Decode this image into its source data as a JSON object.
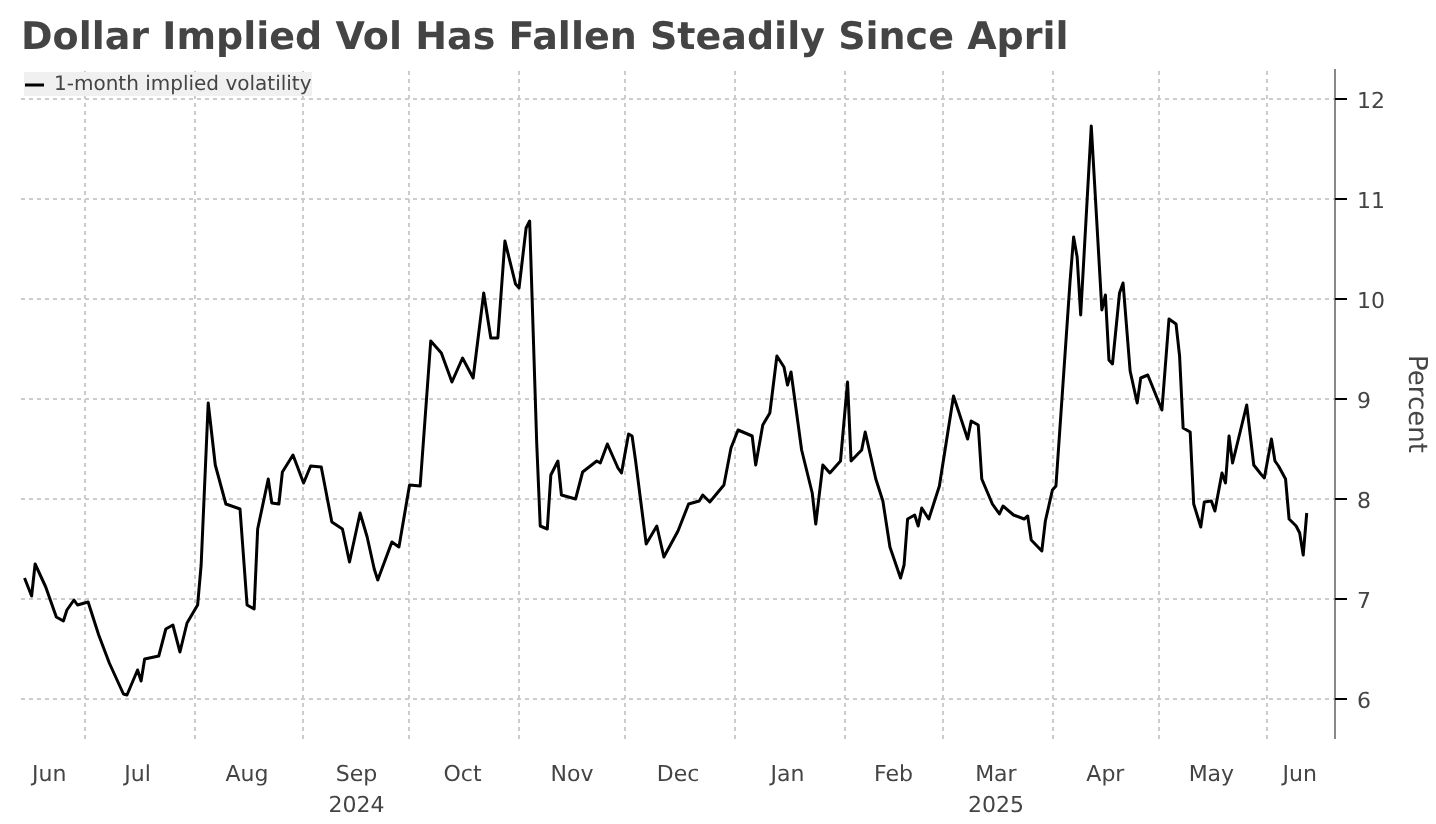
{
  "chart_data": {
    "type": "line",
    "title": "Dollar Implied Vol Has Fallen Steadily Since April",
    "ylabel": "Percent",
    "x": [
      "2024-06-14",
      "2024-06-16",
      "2024-06-17",
      "2024-06-20",
      "2024-06-23",
      "2024-06-25",
      "2024-06-26",
      "2024-06-28",
      "2024-06-29",
      "2024-07-02",
      "2024-07-05",
      "2024-07-08",
      "2024-07-12",
      "2024-07-13",
      "2024-07-16",
      "2024-07-17",
      "2024-07-18",
      "2024-07-22",
      "2024-07-24",
      "2024-07-26",
      "2024-07-28",
      "2024-07-30",
      "2024-08-02",
      "2024-08-03",
      "2024-08-05",
      "2024-08-07",
      "2024-08-10",
      "2024-08-14",
      "2024-08-16",
      "2024-08-18",
      "2024-08-19",
      "2024-08-22",
      "2024-08-23",
      "2024-08-25",
      "2024-08-26",
      "2024-08-29",
      "2024-09-01",
      "2024-09-03",
      "2024-09-06",
      "2024-09-09",
      "2024-09-12",
      "2024-09-14",
      "2024-09-17",
      "2024-09-19",
      "2024-09-21",
      "2024-09-22",
      "2024-09-26",
      "2024-09-28",
      "2024-10-01",
      "2024-10-04",
      "2024-10-07",
      "2024-10-10",
      "2024-10-13",
      "2024-10-16",
      "2024-10-19",
      "2024-10-22",
      "2024-10-24",
      "2024-10-26",
      "2024-10-28",
      "2024-10-31",
      "2024-11-01",
      "2024-11-03",
      "2024-11-04",
      "2024-11-06",
      "2024-11-07",
      "2024-11-09",
      "2024-11-10",
      "2024-11-12",
      "2024-11-13",
      "2024-11-17",
      "2024-11-19",
      "2024-11-23",
      "2024-11-24",
      "2024-11-26",
      "2024-11-29",
      "2024-11-30",
      "2024-12-02",
      "2024-12-03",
      "2024-12-04",
      "2024-12-07",
      "2024-12-10",
      "2024-12-12",
      "2024-12-16",
      "2024-12-19",
      "2024-12-22",
      "2024-12-23",
      "2024-12-25",
      "2024-12-29",
      "2024-12-31",
      "2025-01-02",
      "2025-01-06",
      "2025-01-07",
      "2025-01-09",
      "2025-01-11",
      "2025-01-13",
      "2025-01-15",
      "2025-01-16",
      "2025-01-17",
      "2025-01-20",
      "2025-01-23",
      "2025-01-24",
      "2025-01-26",
      "2025-01-28",
      "2025-01-31",
      "2025-02-02",
      "2025-02-03",
      "2025-02-06",
      "2025-02-07",
      "2025-02-10",
      "2025-02-12",
      "2025-02-14",
      "2025-02-17",
      "2025-02-18",
      "2025-02-19",
      "2025-02-21",
      "2025-02-22",
      "2025-02-23",
      "2025-02-25",
      "2025-02-28",
      "2025-03-04",
      "2025-03-08",
      "2025-03-09",
      "2025-03-11",
      "2025-03-12",
      "2025-03-15",
      "2025-03-17",
      "2025-03-18",
      "2025-03-21",
      "2025-03-24",
      "2025-03-25",
      "2025-03-26",
      "2025-03-29",
      "2025-03-30",
      "2025-04-01",
      "2025-04-02",
      "2025-04-06",
      "2025-04-07",
      "2025-04-08",
      "2025-04-09",
      "2025-04-12",
      "2025-04-15",
      "2025-04-16",
      "2025-04-17",
      "2025-04-18",
      "2025-04-20",
      "2025-04-21",
      "2025-04-23",
      "2025-04-25",
      "2025-04-26",
      "2025-04-28",
      "2025-05-02",
      "2025-05-04",
      "2025-05-06",
      "2025-05-07",
      "2025-05-08",
      "2025-05-10",
      "2025-05-11",
      "2025-05-13",
      "2025-05-14",
      "2025-05-16",
      "2025-05-17",
      "2025-05-19",
      "2025-05-20",
      "2025-05-21",
      "2025-05-22",
      "2025-05-26",
      "2025-05-28",
      "2025-05-30",
      "2025-05-31",
      "2025-06-02",
      "2025-06-03",
      "2025-06-04",
      "2025-06-06",
      "2025-06-07",
      "2025-06-09",
      "2025-06-10",
      "2025-06-11",
      "2025-06-12"
    ],
    "series": [
      {
        "name": "1-month implied volatility",
        "color": "#000000",
        "values": [
          7.21,
          7.03,
          7.35,
          7.12,
          6.82,
          6.78,
          6.89,
          6.99,
          6.94,
          6.97,
          6.64,
          6.36,
          6.05,
          6.04,
          6.29,
          6.18,
          6.4,
          6.43,
          6.7,
          6.74,
          6.47,
          6.76,
          6.94,
          7.34,
          8.96,
          8.34,
          7.95,
          7.9,
          6.94,
          6.9,
          7.7,
          8.2,
          7.96,
          7.95,
          8.27,
          8.44,
          8.16,
          8.33,
          8.32,
          7.77,
          7.7,
          7.37,
          7.86,
          7.62,
          7.3,
          7.19,
          7.57,
          7.52,
          8.14,
          8.13,
          9.58,
          9.46,
          9.17,
          9.41,
          9.21,
          10.06,
          9.61,
          9.61,
          10.58,
          10.15,
          10.11,
          10.71,
          10.78,
          8.56,
          7.73,
          7.7,
          8.24,
          8.38,
          8.04,
          8.0,
          8.27,
          8.38,
          8.36,
          8.55,
          8.31,
          8.26,
          8.65,
          8.63,
          8.38,
          7.55,
          7.73,
          7.42,
          7.68,
          7.95,
          7.98,
          8.04,
          7.97,
          8.14,
          8.51,
          8.69,
          8.63,
          8.34,
          8.74,
          8.86,
          9.43,
          9.32,
          9.14,
          9.27,
          8.49,
          8.06,
          7.75,
          8.34,
          8.26,
          8.38,
          9.17,
          8.38,
          8.49,
          8.67,
          8.2,
          7.98,
          7.52,
          7.21,
          7.34,
          7.8,
          7.84,
          7.73,
          7.91,
          7.8,
          8.13,
          9.03,
          8.6,
          8.78,
          8.74,
          8.2,
          7.95,
          7.85,
          7.93,
          7.84,
          7.8,
          7.83,
          7.59,
          7.48,
          7.78,
          8.09,
          8.13,
          10.18,
          10.62,
          10.42,
          9.84,
          11.73,
          9.89,
          10.04,
          9.39,
          9.35,
          10.06,
          10.16,
          9.28,
          8.96,
          9.21,
          9.24,
          8.89,
          9.8,
          9.75,
          9.43,
          8.71,
          8.67,
          7.95,
          7.72,
          7.97,
          7.98,
          7.88,
          8.26,
          8.16,
          8.63,
          8.36,
          8.94,
          8.34,
          8.25,
          8.21,
          8.6,
          8.38,
          8.33,
          8.2,
          7.8,
          7.73,
          7.66,
          7.44,
          7.86
        ]
      }
    ],
    "xlim": [
      "2024-06-13",
      "2025-06-20"
    ],
    "ylim": [
      5.6,
      12.3
    ],
    "yticks": [
      6,
      7,
      8,
      9,
      10,
      11,
      12
    ],
    "xticks": [
      {
        "value": "2024-06-21",
        "label": "Jun"
      },
      {
        "value": "2024-07-01",
        "label": null
      },
      {
        "value": "2024-07-16",
        "label": "Jul"
      },
      {
        "value": "2024-08-01",
        "label": null
      },
      {
        "value": "2024-08-16",
        "label": "Aug"
      },
      {
        "value": "2024-09-01",
        "label": null
      },
      {
        "value": "2024-09-16",
        "label": "Sep\n2024"
      },
      {
        "value": "2024-10-01",
        "label": null
      },
      {
        "value": "2024-10-16",
        "label": "Oct"
      },
      {
        "value": "2024-11-01",
        "label": null
      },
      {
        "value": "2024-11-16",
        "label": "Nov"
      },
      {
        "value": "2024-12-01",
        "label": null
      },
      {
        "value": "2024-12-16",
        "label": "Dec"
      },
      {
        "value": "2025-01-01",
        "label": null
      },
      {
        "value": "2025-01-16",
        "label": "Jan"
      },
      {
        "value": "2025-02-01",
        "label": null
      },
      {
        "value": "2025-02-15",
        "label": "Feb"
      },
      {
        "value": "2025-03-01",
        "label": null
      },
      {
        "value": "2025-03-16",
        "label": "Mar\n2025"
      },
      {
        "value": "2025-04-01",
        "label": null
      },
      {
        "value": "2025-04-16",
        "label": "Apr"
      },
      {
        "value": "2025-05-01",
        "label": null
      },
      {
        "value": "2025-05-16",
        "label": "May"
      },
      {
        "value": "2025-06-01",
        "label": null
      },
      {
        "value": "2025-06-10",
        "label": "Jun"
      }
    ],
    "grid": true,
    "legend": "top left"
  }
}
